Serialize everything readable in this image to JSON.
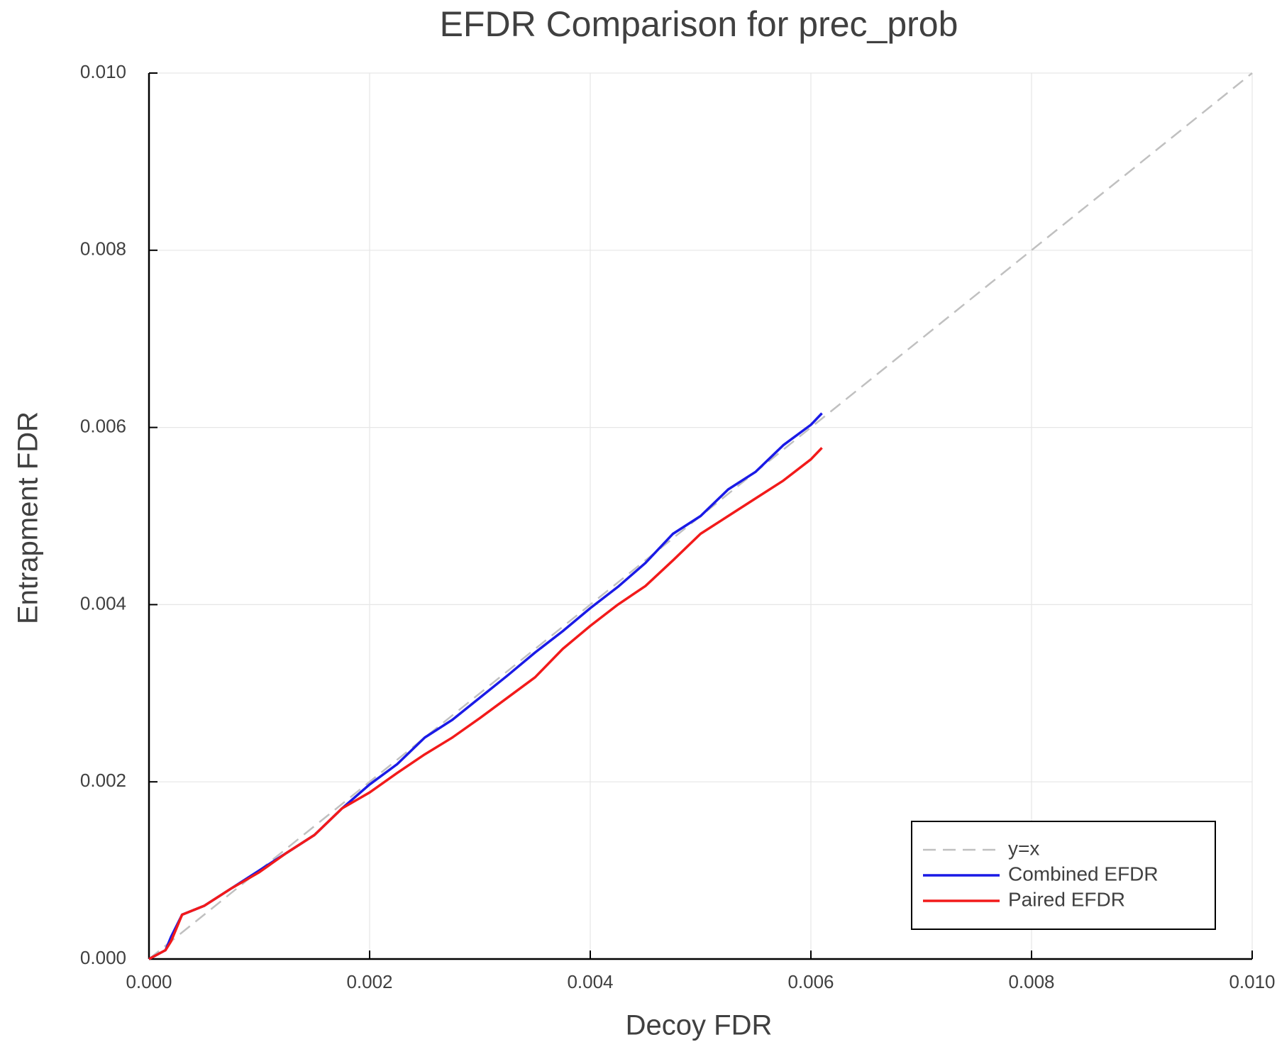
{
  "chart_data": {
    "type": "line",
    "title": "EFDR Comparison for prec_prob",
    "x_label": "Decoy FDR",
    "y_label": "Entrapment FDR",
    "xlim": [
      0,
      0.01
    ],
    "ylim": [
      0,
      0.01
    ],
    "xticks": [
      {
        "value": 0,
        "label": "0.000"
      },
      {
        "value": 0.002,
        "label": "0.002"
      },
      {
        "value": 0.004,
        "label": "0.004"
      },
      {
        "value": 0.006,
        "label": "0.006"
      },
      {
        "value": 0.008,
        "label": "0.008"
      },
      {
        "value": 0.01,
        "label": "0.010"
      }
    ],
    "yticks": [
      {
        "value": 0,
        "label": "0.000"
      },
      {
        "value": 0.002,
        "label": "0.002"
      },
      {
        "value": 0.004,
        "label": "0.004"
      },
      {
        "value": 0.006,
        "label": "0.006"
      },
      {
        "value": 0.008,
        "label": "0.008"
      },
      {
        "value": 0.01,
        "label": "0.010"
      }
    ],
    "grid": true,
    "legend": "lower right",
    "series": [
      {
        "name": "y=x",
        "color": "#c0c0c0",
        "dashed": true,
        "x": [
          0,
          0.01
        ],
        "values": [
          0,
          0.01
        ]
      },
      {
        "name": "Combined EFDR",
        "color": "#1a1ae6",
        "dashed": false,
        "x": [
          0,
          0.00015,
          0.0002,
          0.0003,
          0.0005,
          0.00075,
          0.001,
          0.00125,
          0.0015,
          0.00175,
          0.002,
          0.00225,
          0.0025,
          0.00275,
          0.003,
          0.00325,
          0.0035,
          0.00375,
          0.004,
          0.00425,
          0.0045,
          0.00475,
          0.005,
          0.00525,
          0.0055,
          0.00575,
          0.006,
          0.0061
        ],
        "values": [
          0,
          0.0001,
          0.00025,
          0.0005,
          0.0006,
          0.0008,
          0.001,
          0.0012,
          0.0014,
          0.0017,
          0.00197,
          0.0022,
          0.0025,
          0.0027,
          0.00295,
          0.0032,
          0.00346,
          0.0037,
          0.00396,
          0.0042,
          0.00447,
          0.0048,
          0.005,
          0.0053,
          0.0055,
          0.0058,
          0.00603,
          0.00616
        ]
      },
      {
        "name": "Paired EFDR",
        "color": "#f21a1a",
        "dashed": false,
        "x": [
          0,
          0.00015,
          0.0002,
          0.0003,
          0.0005,
          0.00075,
          0.001,
          0.00125,
          0.0015,
          0.00175,
          0.002,
          0.00225,
          0.0025,
          0.00275,
          0.003,
          0.00325,
          0.0035,
          0.00375,
          0.004,
          0.00425,
          0.0045,
          0.00475,
          0.005,
          0.00525,
          0.0055,
          0.00575,
          0.006,
          0.0061
        ],
        "values": [
          0,
          0.0001,
          0.0002,
          0.0005,
          0.0006,
          0.0008,
          0.00098,
          0.0012,
          0.0014,
          0.0017,
          0.00188,
          0.0021,
          0.00231,
          0.0025,
          0.00272,
          0.00295,
          0.00318,
          0.0035,
          0.00376,
          0.004,
          0.00421,
          0.0045,
          0.0048,
          0.005,
          0.0052,
          0.0054,
          0.00564,
          0.00577
        ]
      }
    ]
  }
}
